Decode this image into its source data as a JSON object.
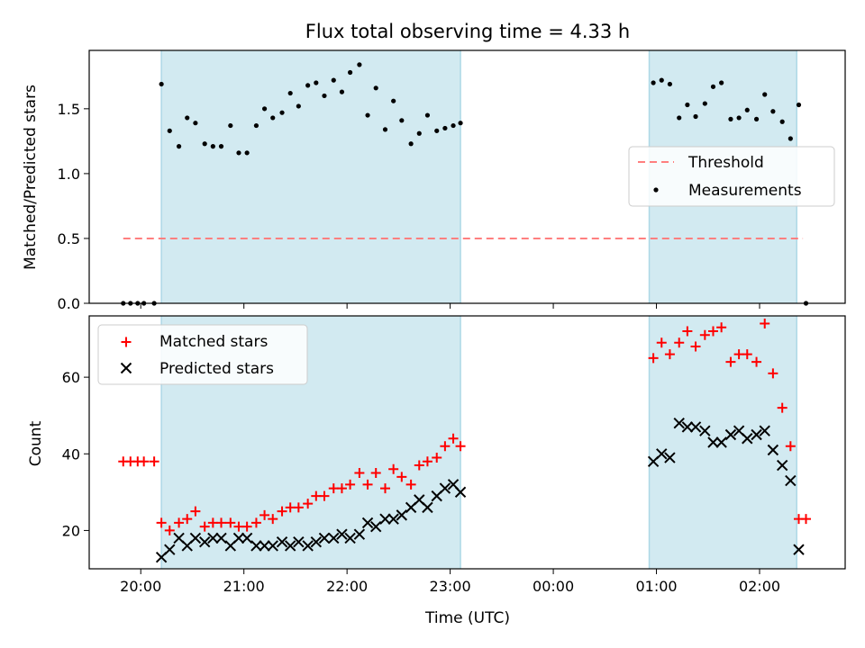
{
  "title": "Flux total observing time = 4.33 h",
  "colors": {
    "threshold": "#ff7f7f",
    "measurement": "#000000",
    "matched": "#ff0000",
    "predicted": "#000000",
    "observing_span": "#add8e6"
  },
  "chart_data": [
    {
      "type": "scatter",
      "panel": "top",
      "ylabel": "Matched/Predicted stars",
      "ylim": [
        0,
        1.95
      ],
      "yticks": [
        0.0,
        0.5,
        1.0,
        1.5
      ],
      "ytick_labels": [
        "0.0",
        "0.5",
        "1.0",
        "1.5"
      ],
      "xlim": [
        19.5,
        26.83
      ],
      "observing_spans": [
        [
          20.2,
          23.1
        ],
        [
          24.93,
          26.36
        ]
      ],
      "legend": {
        "placement": "right",
        "entries": [
          "Threshold",
          "Measurements"
        ]
      },
      "series": [
        {
          "name": "Threshold",
          "style": "dashed-line",
          "x": [
            19.83,
            26.42
          ],
          "y": [
            0.5,
            0.5
          ]
        },
        {
          "name": "Measurements",
          "style": "dots",
          "x": [
            19.83,
            19.9,
            19.97,
            20.03,
            20.13,
            20.2,
            20.28,
            20.37,
            20.45,
            20.53,
            20.62,
            20.7,
            20.78,
            20.87,
            20.95,
            21.03,
            21.12,
            21.2,
            21.28,
            21.37,
            21.45,
            21.53,
            21.62,
            21.7,
            21.78,
            21.87,
            21.95,
            22.03,
            22.12,
            22.2,
            22.28,
            22.37,
            22.45,
            22.53,
            22.62,
            22.7,
            22.78,
            22.87,
            22.95,
            23.03,
            23.1,
            24.97,
            25.05,
            25.13,
            25.22,
            25.3,
            25.38,
            25.47,
            25.55,
            25.63,
            25.72,
            25.8,
            25.88,
            25.97,
            26.05,
            26.13,
            26.22,
            26.3,
            26.38,
            26.45
          ],
          "y": [
            0.0,
            0.0,
            0.0,
            0.0,
            0.0,
            1.69,
            1.33,
            1.21,
            1.43,
            1.39,
            1.23,
            1.21,
            1.21,
            1.37,
            1.16,
            1.16,
            1.37,
            1.5,
            1.43,
            1.47,
            1.62,
            1.52,
            1.68,
            1.7,
            1.6,
            1.72,
            1.63,
            1.78,
            1.84,
            1.45,
            1.66,
            1.34,
            1.56,
            1.41,
            1.23,
            1.31,
            1.45,
            1.33,
            1.35,
            1.37,
            1.39,
            1.7,
            1.72,
            1.69,
            1.43,
            1.53,
            1.44,
            1.54,
            1.67,
            1.7,
            1.42,
            1.43,
            1.49,
            1.42,
            1.61,
            1.48,
            1.4,
            1.27,
            1.53,
            0.0
          ]
        }
      ]
    },
    {
      "type": "scatter",
      "panel": "bottom",
      "xlabel": "Time (UTC)",
      "ylabel": "Count",
      "ylim": [
        10,
        76
      ],
      "yticks": [
        20,
        40,
        60
      ],
      "ytick_labels": [
        "20",
        "40",
        "60"
      ],
      "xlim": [
        19.5,
        26.83
      ],
      "xticks": [
        20,
        21,
        22,
        23,
        24,
        25,
        26
      ],
      "xtick_labels": [
        "20:00",
        "21:00",
        "22:00",
        "23:00",
        "00:00",
        "01:00",
        "02:00"
      ],
      "observing_spans": [
        [
          20.2,
          23.1
        ],
        [
          24.93,
          26.36
        ]
      ],
      "legend": {
        "placement": "top-left",
        "entries": [
          "Matched stars",
          "Predicted stars"
        ]
      },
      "series": [
        {
          "name": "Matched stars",
          "marker": "+",
          "x": [
            19.83,
            19.9,
            19.97,
            20.03,
            20.13,
            20.2,
            20.28,
            20.37,
            20.45,
            20.53,
            20.62,
            20.7,
            20.78,
            20.87,
            20.95,
            21.03,
            21.12,
            21.2,
            21.28,
            21.37,
            21.45,
            21.53,
            21.62,
            21.7,
            21.78,
            21.87,
            21.95,
            22.03,
            22.12,
            22.2,
            22.28,
            22.37,
            22.45,
            22.53,
            22.62,
            22.7,
            22.78,
            22.87,
            22.95,
            23.03,
            23.1,
            24.97,
            25.05,
            25.13,
            25.22,
            25.3,
            25.38,
            25.47,
            25.55,
            25.63,
            25.72,
            25.8,
            25.88,
            25.97,
            26.05,
            26.13,
            26.22,
            26.3,
            26.38,
            26.45
          ],
          "y": [
            38,
            38,
            38,
            38,
            38,
            22,
            20,
            22,
            23,
            25,
            21,
            22,
            22,
            22,
            21,
            21,
            22,
            24,
            23,
            25,
            26,
            26,
            27,
            29,
            29,
            31,
            31,
            32,
            35,
            32,
            35,
            31,
            36,
            34,
            32,
            37,
            38,
            39,
            42,
            44,
            42,
            65,
            69,
            66,
            69,
            72,
            68,
            71,
            72,
            73,
            64,
            66,
            66,
            64,
            74,
            61,
            52,
            42,
            23,
            23
          ]
        },
        {
          "name": "Predicted stars",
          "marker": "x",
          "x": [
            20.2,
            20.28,
            20.37,
            20.45,
            20.53,
            20.62,
            20.7,
            20.78,
            20.87,
            20.95,
            21.03,
            21.12,
            21.2,
            21.28,
            21.37,
            21.45,
            21.53,
            21.62,
            21.7,
            21.78,
            21.87,
            21.95,
            22.03,
            22.12,
            22.2,
            22.28,
            22.37,
            22.45,
            22.53,
            22.62,
            22.7,
            22.78,
            22.87,
            22.95,
            23.03,
            23.1,
            24.97,
            25.05,
            25.13,
            25.22,
            25.3,
            25.38,
            25.47,
            25.55,
            25.63,
            25.72,
            25.8,
            25.88,
            25.97,
            26.05,
            26.13,
            26.22,
            26.3,
            26.38
          ],
          "y": [
            13,
            15,
            18,
            16,
            18,
            17,
            18,
            18,
            16,
            18,
            18,
            16,
            16,
            16,
            17,
            16,
            17,
            16,
            17,
            18,
            18,
            19,
            18,
            19,
            22,
            21,
            23,
            23,
            24,
            26,
            28,
            26,
            29,
            31,
            32,
            30,
            38,
            40,
            39,
            48,
            47,
            47,
            46,
            43,
            43,
            45,
            46,
            44,
            45,
            46,
            41,
            37,
            33,
            15
          ]
        }
      ]
    }
  ]
}
